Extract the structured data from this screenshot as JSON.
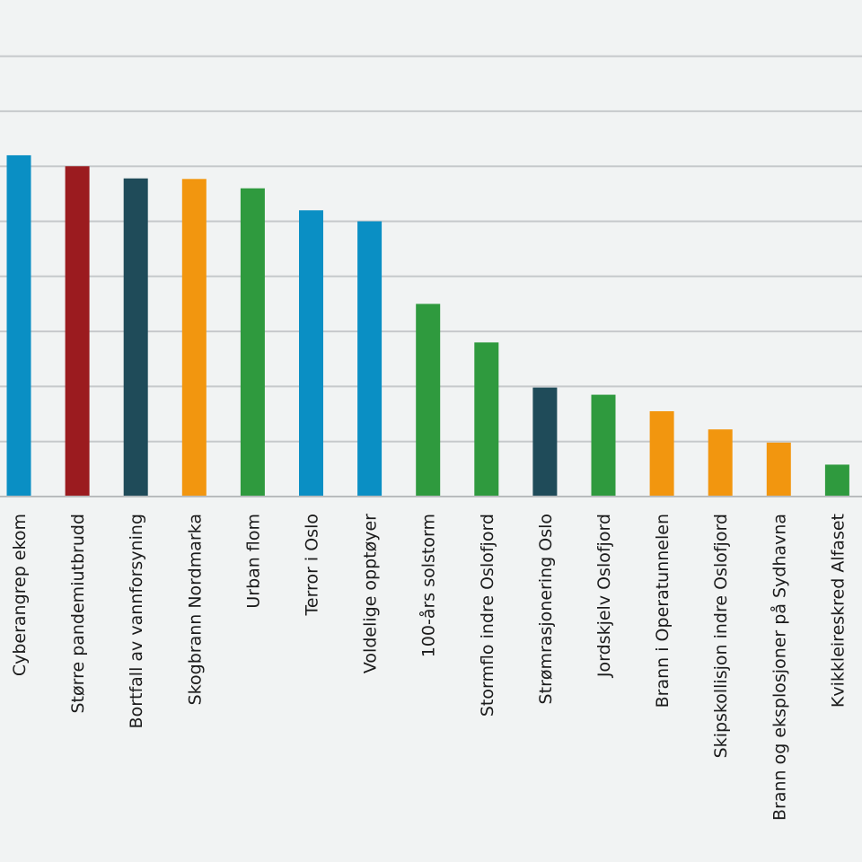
{
  "chart_data": {
    "type": "bar",
    "title": "",
    "xlabel": "",
    "ylabel": "",
    "ylim": [
      0,
      9
    ],
    "grid": true,
    "gridlines": [
      1,
      2,
      3,
      4,
      5,
      6,
      7,
      8
    ],
    "categories": [
      "Cyberangrep ekom",
      "Større pandemiutbrudd",
      "Bortfall av vannforsyning",
      "Skogbrann Nordmarka",
      "Urban flom",
      "Terror i Oslo",
      "Voldelige opptøyer",
      "100-års solstorm",
      "Stormflo indre Oslofjord",
      "Strømrasjonering Oslo",
      "Jordskjelv Oslofjord",
      "Brann i Operatunnelen",
      "Skipskollisjon indre Oslofjord",
      "Brann og eksplosjoner på Sydhavna",
      "Kvikkleireskred Alfaset"
    ],
    "values": [
      6.2,
      6.0,
      5.78,
      5.77,
      5.6,
      5.2,
      5.0,
      3.5,
      2.8,
      1.98,
      1.85,
      1.55,
      1.22,
      0.98,
      0.58
    ],
    "colors": [
      "#0a8fc4",
      "#9b1b1f",
      "#1f4b59",
      "#f2960f",
      "#2f9a3e",
      "#0a8fc4",
      "#0a8fc4",
      "#2f9a3e",
      "#2f9a3e",
      "#1f4b59",
      "#2f9a3e",
      "#f2960f",
      "#f2960f",
      "#f2960f",
      "#2f9a3e"
    ]
  }
}
